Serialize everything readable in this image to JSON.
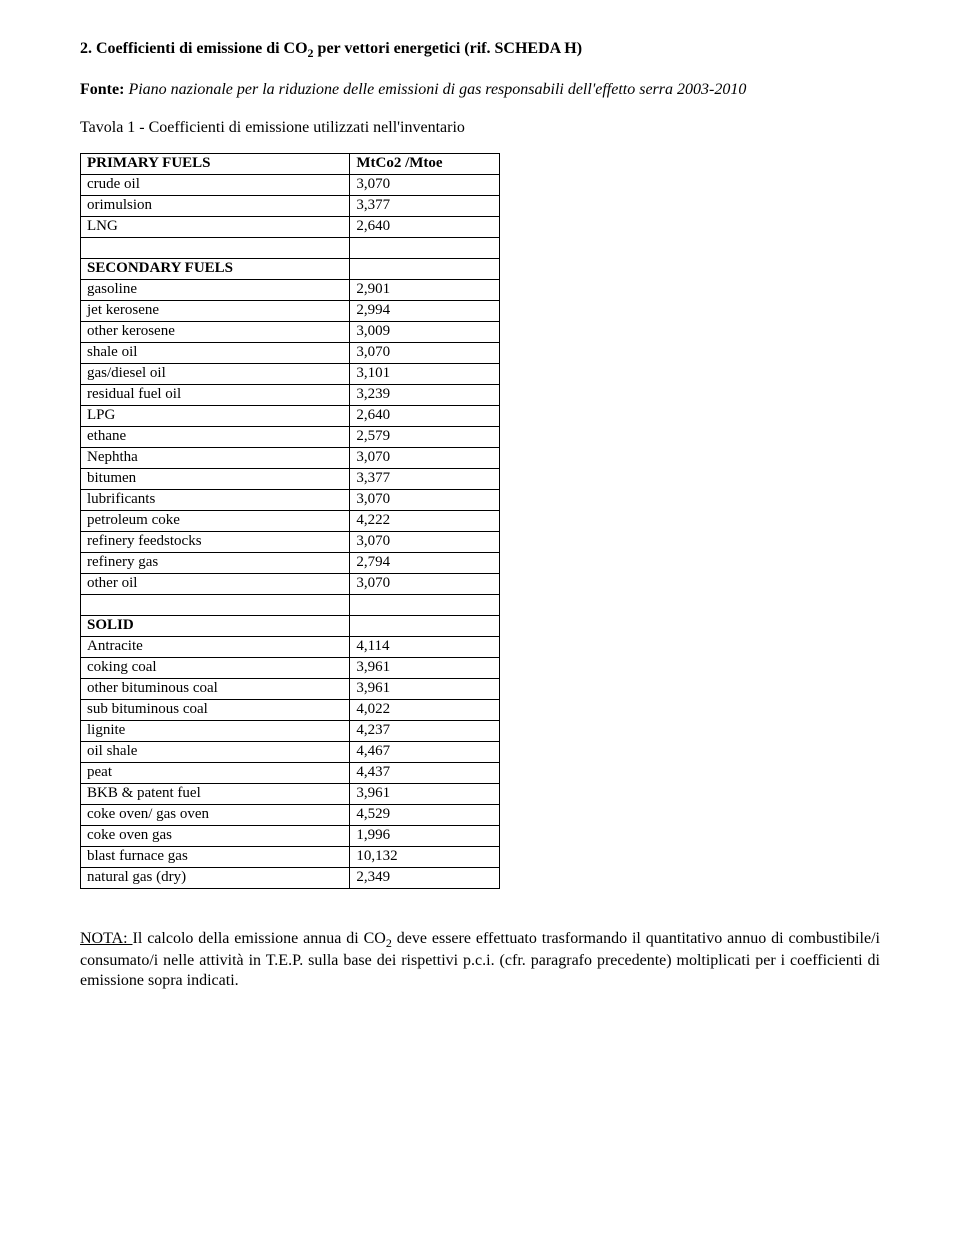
{
  "heading": {
    "prefix": "2. Coefficienti di emissione di CO",
    "sub": "2",
    "suffix": " per vettori energetici (rif. SCHEDA H)"
  },
  "source": {
    "label": "Fonte:",
    "text": "Piano nazionale per la riduzione delle emissioni di gas responsabili dell'effetto serra 2003-2010"
  },
  "tableCaption": "Tavola 1 - Coefficienti di emissione utilizzati nell'inventario",
  "table": {
    "sections": [
      {
        "header": {
          "label": "PRIMARY FUELS",
          "value": "MtCo2 /Mtoe"
        },
        "rows": [
          {
            "label": "crude oil",
            "value": "3,070"
          },
          {
            "label": "orimulsion",
            "value": "3,377"
          },
          {
            "label": "LNG",
            "value": "2,640"
          }
        ]
      },
      {
        "header": {
          "label": "SECONDARY FUELS",
          "value": ""
        },
        "rows": [
          {
            "label": "gasoline",
            "value": "2,901"
          },
          {
            "label": "jet kerosene",
            "value": "2,994"
          },
          {
            "label": "other kerosene",
            "value": "3,009"
          },
          {
            "label": "shale oil",
            "value": "3,070"
          },
          {
            "label": "gas/diesel oil",
            "value": "3,101"
          },
          {
            "label": "residual fuel oil",
            "value": "3,239"
          },
          {
            "label": "LPG",
            "value": "2,640"
          },
          {
            "label": "ethane",
            "value": "2,579"
          },
          {
            "label": "Nephtha",
            "value": "3,070"
          },
          {
            "label": "bitumen",
            "value": "3,377"
          },
          {
            "label": "lubrificants",
            "value": "3,070"
          },
          {
            "label": "petroleum coke",
            "value": "4,222"
          },
          {
            "label": "refinery feedstocks",
            "value": "3,070"
          },
          {
            "label": "refinery gas",
            "value": "2,794"
          },
          {
            "label": "other oil",
            "value": "3,070"
          }
        ]
      },
      {
        "header": {
          "label": "SOLID",
          "value": ""
        },
        "rows": [
          {
            "label": "Antracite",
            "value": "4,114"
          },
          {
            "label": "coking coal",
            "value": "3,961"
          },
          {
            "label": "other bituminous coal",
            "value": "3,961"
          },
          {
            "label": "sub bituminous coal",
            "value": "4,022"
          },
          {
            "label": "lignite",
            "value": "4,237"
          },
          {
            "label": "oil shale",
            "value": "4,467"
          },
          {
            "label": "peat",
            "value": "4,437"
          },
          {
            "label": "BKB & patent fuel",
            "value": "3,961"
          },
          {
            "label": "coke oven/ gas oven",
            "value": "4,529"
          },
          {
            "label": "coke oven gas",
            "value": "1,996"
          },
          {
            "label": "blast furnace gas",
            "value": "10,132"
          },
          {
            "label": "natural gas (dry)",
            "value": "2,349"
          }
        ]
      }
    ]
  },
  "note": {
    "label": "NOTA: ",
    "part1": "Il calcolo della emissione annua di CO",
    "sub": "2",
    "part2": " deve essere effettuato trasformando il quantitativo annuo di combustibile/i consumato/i nelle attività in T.E.P. sulla base dei rispettivi p.c.i. (cfr. paragrafo precedente) moltiplicati per i coefficienti di emissione sopra indicati."
  }
}
